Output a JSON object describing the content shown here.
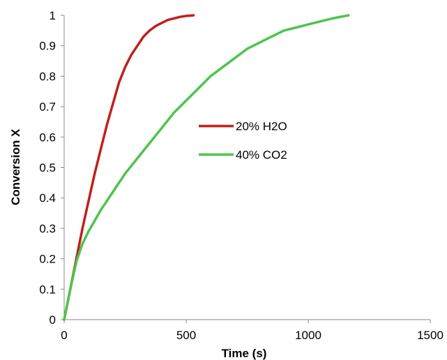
{
  "chart_data": {
    "type": "line",
    "title": "",
    "xlabel": "Time (s)",
    "ylabel": "Conversion X",
    "xlim": [
      0,
      1500
    ],
    "ylim": [
      0,
      1
    ],
    "xticks": [
      0,
      500,
      1000,
      1500
    ],
    "yticks": [
      0,
      0.1,
      0.2,
      0.3,
      0.4,
      0.5,
      0.6,
      0.7,
      0.8,
      0.9,
      1
    ],
    "grid": false,
    "legend_position": "center",
    "series": [
      {
        "name": "20% H2O",
        "color": "#c0201a",
        "x": [
          0,
          25,
          50,
          75,
          100,
          125,
          150,
          175,
          200,
          225,
          250,
          275,
          300,
          325,
          350,
          375,
          400,
          425,
          450,
          475,
          500,
          530
        ],
        "y": [
          0,
          0.1,
          0.2,
          0.3,
          0.39,
          0.48,
          0.56,
          0.64,
          0.71,
          0.78,
          0.83,
          0.87,
          0.9,
          0.93,
          0.95,
          0.965,
          0.975,
          0.985,
          0.99,
          0.995,
          0.998,
          1.0
        ]
      },
      {
        "name": "40% CO2",
        "color": "#4dc44d",
        "x": [
          0,
          25,
          50,
          75,
          100,
          150,
          200,
          250,
          300,
          350,
          400,
          450,
          500,
          550,
          600,
          650,
          700,
          750,
          800,
          850,
          900,
          950,
          1000,
          1050,
          1100,
          1165
        ],
        "y": [
          0,
          0.1,
          0.19,
          0.25,
          0.29,
          0.36,
          0.42,
          0.48,
          0.53,
          0.58,
          0.63,
          0.68,
          0.72,
          0.76,
          0.8,
          0.83,
          0.86,
          0.89,
          0.91,
          0.93,
          0.95,
          0.96,
          0.97,
          0.98,
          0.99,
          1.0
        ]
      }
    ]
  }
}
